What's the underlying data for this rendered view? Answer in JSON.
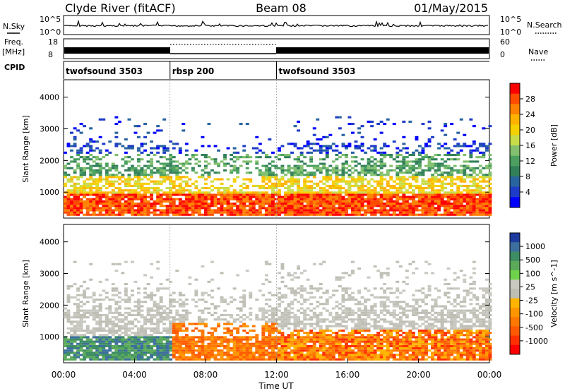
{
  "header": {
    "station": "Clyde River (fitACF)",
    "beam": "Beam 08",
    "date": "01/May/2015"
  },
  "strip_labels": {
    "nsky": "N.Sky",
    "nsky_ticks": [
      "10^5",
      "10^0"
    ],
    "nsearch": "N.Search",
    "nsearch_ticks": [
      "10^5",
      "10^0"
    ],
    "freq": "Freq.",
    "freq_unit": "[MHz]",
    "freq_ticks": [
      "18",
      "8"
    ],
    "nave": "Nave",
    "nave_ticks": [
      "60",
      "0"
    ],
    "cpid": "CPID"
  },
  "cpid_segments": [
    {
      "label": "twofsound 3503",
      "start": 0,
      "end": 6
    },
    {
      "label": "rbsp 200",
      "start": 6,
      "end": 12
    },
    {
      "label": "twofsound 3503",
      "start": 12,
      "end": 24
    }
  ],
  "axes": {
    "x_label": "Time UT",
    "x_ticks": [
      "00:00",
      "04:00",
      "08:00",
      "12:00",
      "16:00",
      "20:00",
      "00:00"
    ],
    "x_tick_hours": [
      0,
      4,
      8,
      12,
      16,
      20,
      24
    ],
    "y_label": "Slant Range [km]",
    "y_ticks": [
      "4000",
      "3000",
      "2000",
      "1000"
    ],
    "y_tick_values": [
      4000,
      3000,
      2000,
      1000
    ],
    "y_range_km": [
      180,
      4550
    ]
  },
  "chart_data": [
    {
      "type": "heatmap",
      "name": "power",
      "x_range_hours": [
        0,
        24
      ],
      "colorbar": {
        "label": "Power [dB]",
        "ticks": [
          "28",
          "24",
          "20",
          "16",
          "12",
          "8",
          "4"
        ],
        "colors": [
          "#ff0000",
          "#ff4b00",
          "#ff8200",
          "#ffb300",
          "#f5d000",
          "#c8dc4a",
          "#82c06e",
          "#4ba060",
          "#32805a",
          "#2864a0",
          "#1e3cc8",
          "#0000ff"
        ]
      }
    },
    {
      "type": "heatmap",
      "name": "velocity",
      "x_range_hours": [
        0,
        24
      ],
      "colorbar": {
        "label": "Velocity [m s^-1]",
        "ticks": [
          "1000",
          "500",
          "100",
          "25",
          "-25",
          "-100",
          "-500",
          "-1000"
        ],
        "colors": [
          "#1e3ca0",
          "#3c6e9e",
          "#3c8c64",
          "#5aaa5a",
          "#6ed24a",
          "#c8c8c0",
          "#bebeb4",
          "#ffb400",
          "#ff9600",
          "#ff7800",
          "#ff5a00",
          "#ff3000",
          "#ff0000"
        ]
      }
    }
  ]
}
